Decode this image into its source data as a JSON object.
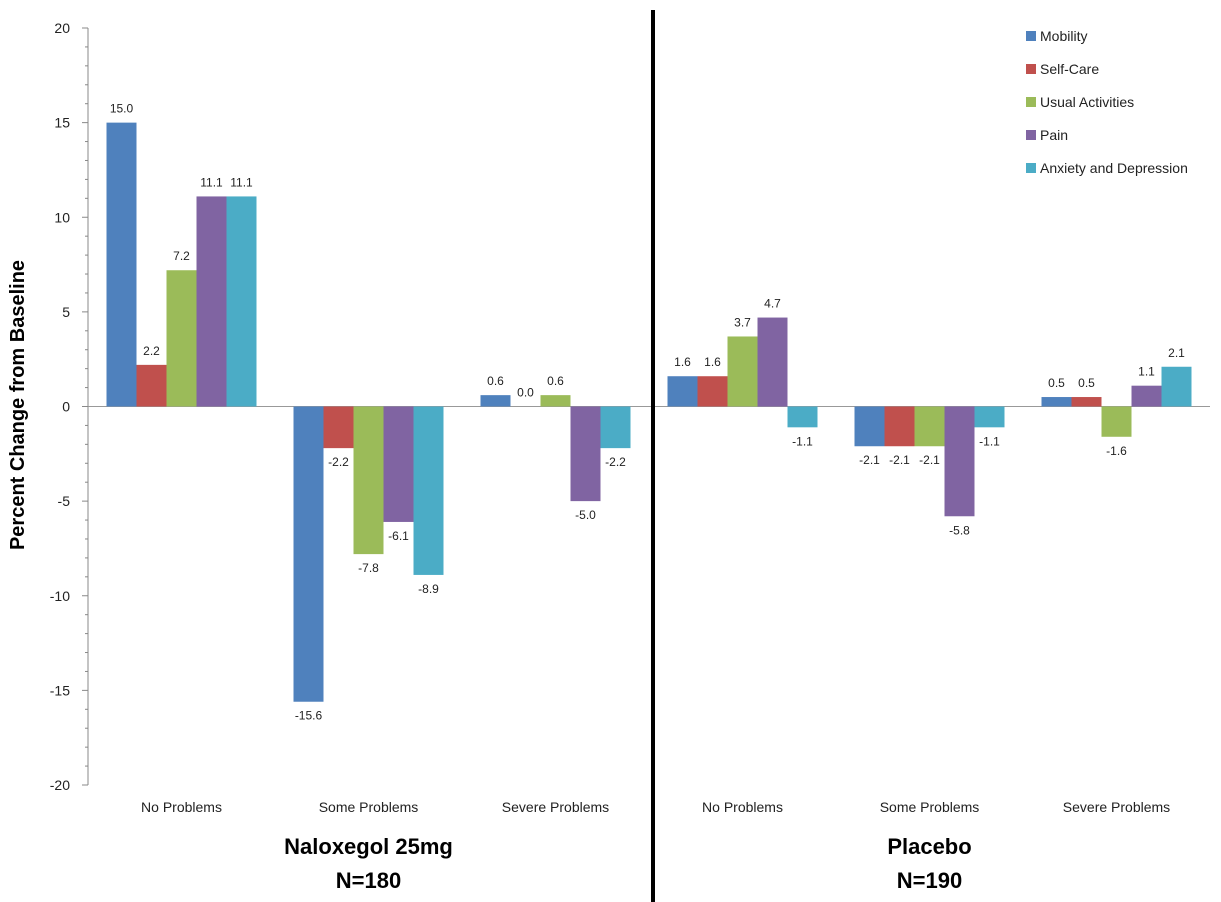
{
  "chart_data": {
    "type": "bar",
    "title": "",
    "ylabel": "Percent Change from Baseline",
    "ylim": [
      -20,
      20
    ],
    "yticks": [
      20,
      15,
      10,
      5,
      0,
      -5,
      -10,
      -15,
      -20
    ],
    "grid": false,
    "legend_position": "top-right",
    "groups": [
      {
        "name": "Naloxegol 25mg",
        "n_label": "N=180",
        "categories": [
          "No Problems",
          "Some Problems",
          "Severe Problems"
        ]
      },
      {
        "name": "Placebo",
        "n_label": "N=190",
        "categories": [
          "No Problems",
          "Some Problems",
          "Severe Problems"
        ]
      }
    ],
    "series": [
      {
        "name": "Mobility",
        "color": "#4F81BD",
        "values": [
          15.0,
          -15.6,
          0.6,
          1.6,
          -2.1,
          0.5
        ]
      },
      {
        "name": "Self-Care",
        "color": "#C0504D",
        "values": [
          2.2,
          -2.2,
          0.0,
          1.6,
          -2.1,
          0.5
        ]
      },
      {
        "name": "Usual Activities",
        "color": "#9BBB59",
        "values": [
          7.2,
          -7.8,
          0.6,
          3.7,
          -2.1,
          -1.6
        ]
      },
      {
        "name": "Pain",
        "color": "#8064A2",
        "values": [
          11.1,
          -6.1,
          -5.0,
          4.7,
          -5.8,
          1.1
        ]
      },
      {
        "name": "Anxiety and Depression",
        "color": "#4BACC6",
        "values": [
          11.1,
          -8.9,
          -2.2,
          -1.1,
          -1.1,
          2.1
        ]
      }
    ]
  }
}
